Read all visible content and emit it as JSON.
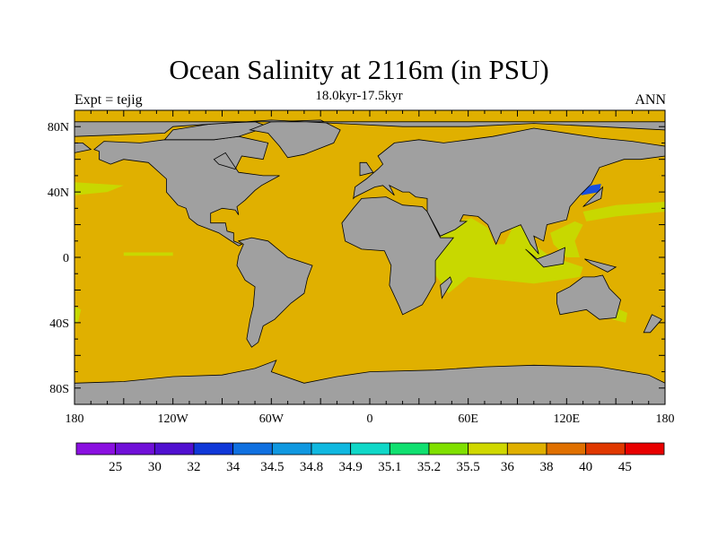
{
  "title": "Ocean Salinity at 2116m (in PSU)",
  "subtitle": "18.0kyr-17.5kyr",
  "left_label": "Expt = tejig",
  "right_label": "ANN",
  "colors": {
    "ocean_main": "#e0b000",
    "ocean_fresher": "#c8d800",
    "land": "#a0a0a0",
    "japan_sea": "#1850e0"
  },
  "chart_data": {
    "type": "heatmap",
    "projection": "cylindrical-equidistant",
    "variable": "Ocean Salinity (PSU)",
    "depth": "2116m",
    "lon_range": [
      -180,
      180
    ],
    "lat_range": [
      -90,
      90
    ],
    "lon_ticks": [
      {
        "value": -180,
        "label": "180"
      },
      {
        "value": -120,
        "label": "120W"
      },
      {
        "value": -60,
        "label": "60W"
      },
      {
        "value": 0,
        "label": "0"
      },
      {
        "value": 60,
        "label": "60E"
      },
      {
        "value": 120,
        "label": "120E"
      },
      {
        "value": 180,
        "label": "180"
      }
    ],
    "lat_ticks": [
      {
        "value": 80,
        "label": "80N"
      },
      {
        "value": 40,
        "label": "40N"
      },
      {
        "value": 0,
        "label": "0"
      },
      {
        "value": -40,
        "label": "40S"
      },
      {
        "value": -80,
        "label": "80S"
      }
    ],
    "colorbar": {
      "labels": [
        "25",
        "30",
        "32",
        "34",
        "34.5",
        "34.8",
        "34.9",
        "35.1",
        "35.2",
        "35.5",
        "36",
        "38",
        "40",
        "45"
      ],
      "colors": [
        "#8a10e0",
        "#7010d8",
        "#5010d0",
        "#1038d8",
        "#1070e0",
        "#1098e0",
        "#10b8e0",
        "#10d8c8",
        "#10e070",
        "#80e000",
        "#d0d800",
        "#e0b000",
        "#e07000",
        "#e03800",
        "#e80000"
      ]
    },
    "dominant_range": "36-38",
    "regions": [
      {
        "name": "most of global ocean",
        "range": "36-38"
      },
      {
        "name": "Indian Ocean / Arabian Sea / Bay of Bengal / Indonesian seas",
        "range": "35.5-36"
      },
      {
        "name": "Sea of Japan",
        "range": "34-34.5"
      }
    ]
  }
}
